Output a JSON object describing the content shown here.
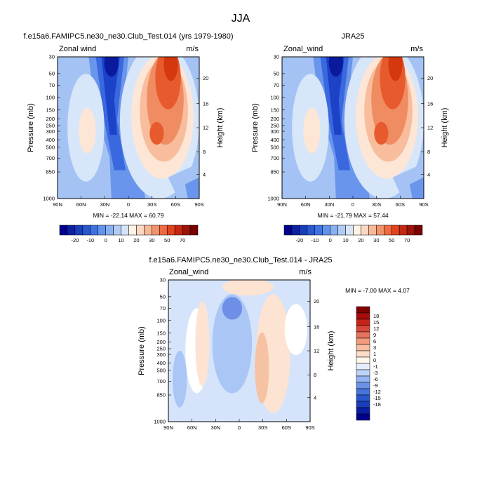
{
  "figure": {
    "title": "JJA"
  },
  "colors": {
    "panel_a": [
      "#00008b",
      "#0d22a3",
      "#1a3ebb",
      "#2858d0",
      "#3f73e0",
      "#6293ea",
      "#88b0f0",
      "#b0cbf5",
      "#d7e5fa",
      "#fff3e6",
      "#fbd8c2",
      "#f7b897",
      "#f2936d",
      "#ed6b42",
      "#e2431c",
      "#c42812",
      "#9e1408",
      "#7a0000"
    ],
    "diff": [
      "#00008b",
      "#0a1ea3",
      "#1a3ebb",
      "#2a58cc",
      "#4575dc",
      "#6a93e8",
      "#93b5f1",
      "#bcd4f7",
      "#e4eefc",
      "#fff6ec",
      "#fdddc6",
      "#f8bea1",
      "#f09b7c",
      "#e7735a",
      "#d8483a",
      "#c42418",
      "#a80c0a",
      "#800000"
    ]
  },
  "chart_data": [
    {
      "type": "heatmap",
      "title": "f.e15a6.FAMIPC5.ne30_ne30.Club_Test.014 (yrs 1979-1980)",
      "left_label": "Zonal wind",
      "right_label": "m/s",
      "xlabel": "",
      "ylabel": "Pressure (mb)",
      "ylabel_right": "Height (km)",
      "x_ticks": [
        "90N",
        "60N",
        "30N",
        "0",
        "30S",
        "60S",
        "90S"
      ],
      "y_ticks": [
        "30",
        "50",
        "70",
        "100",
        "150",
        "200",
        "250",
        "300",
        "400",
        "500",
        "700",
        "850",
        "1000"
      ],
      "y_right_ticks": [
        "20",
        "16",
        "12",
        "8",
        "4"
      ],
      "stats": "MIN = -22.14  MAX =  60.79",
      "min": -22.14,
      "max": 60.79
    },
    {
      "type": "heatmap",
      "title": "JRA25",
      "left_label": "Zonal_wind",
      "right_label": "m/s",
      "xlabel": "",
      "ylabel": "Pressure (mb)",
      "ylabel_right": "Height (km)",
      "x_ticks": [
        "90N",
        "60N",
        "30N",
        "0",
        "30S",
        "60S",
        "90S"
      ],
      "y_ticks": [
        "30",
        "50",
        "70",
        "100",
        "150",
        "200",
        "250",
        "300",
        "400",
        "500",
        "700",
        "850",
        "1000"
      ],
      "y_right_ticks": [
        "20",
        "16",
        "12",
        "8",
        "4"
      ],
      "stats": "MIN = -21.79  MAX =  57.44",
      "min": -21.79,
      "max": 57.44
    },
    {
      "type": "heatmap",
      "title": "f.e15a6.FAMIPC5.ne30_ne30.Club_Test.014 - JRA25",
      "left_label": "Zonal_wind",
      "right_label": "m/s",
      "xlabel": "",
      "ylabel": "Pressure (mb)",
      "ylabel_right": "Height (km)",
      "x_ticks": [
        "90N",
        "60N",
        "30N",
        "0",
        "30S",
        "60S",
        "90S"
      ],
      "y_ticks": [
        "30",
        "50",
        "70",
        "100",
        "150",
        "200",
        "250",
        "300",
        "400",
        "500",
        "700",
        "850",
        "1000"
      ],
      "y_right_ticks": [
        "20",
        "16",
        "12",
        "8",
        "4"
      ],
      "stats": "MIN = -7.00  MAX =  4.07",
      "min": -7.0,
      "max": 4.07
    }
  ],
  "colorbars": {
    "top": {
      "orientation": "horizontal",
      "labels": [
        "-20",
        "-10",
        "0",
        "10",
        "20",
        "30",
        "50",
        "70"
      ]
    },
    "diff": {
      "orientation": "vertical",
      "labels": [
        "18",
        "15",
        "12",
        "9",
        "6",
        "3",
        "1",
        "0",
        "-1",
        "-3",
        "-6",
        "-9",
        "-12",
        "-15",
        "-18"
      ]
    }
  }
}
